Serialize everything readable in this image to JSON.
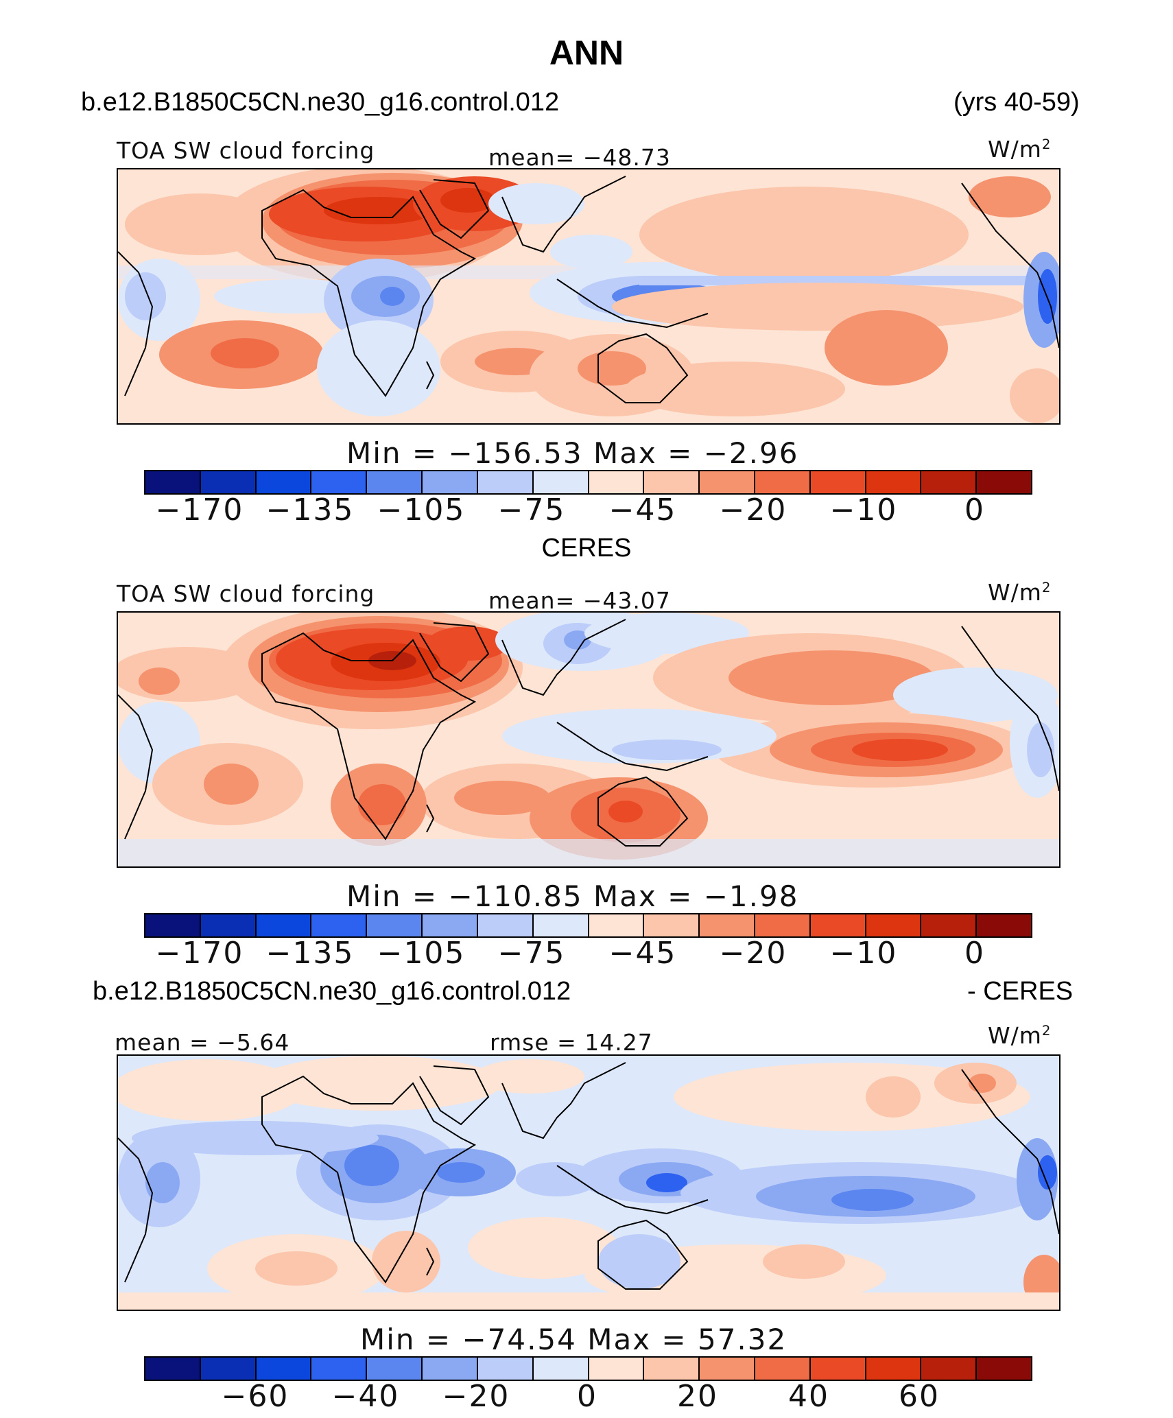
{
  "title": "ANN",
  "case_name": "b.e12.B1850C5CN.ne30_g16.control.012",
  "years": "(yrs 40-59)",
  "obs_name": "CERES",
  "diff_title_left": "b.e12.B1850C5CN.ne30_g16.control.012",
  "diff_title_right": "- CERES",
  "colors": {
    "palette": [
      "#08127a",
      "#0a2fb5",
      "#0b47dc",
      "#2d62f0",
      "#5b86f0",
      "#8ba9f3",
      "#bbcdf8",
      "#dde8fb",
      "#fde4d4",
      "#fbc6ab",
      "#f5936f",
      "#ef6c46",
      "#ea4a25",
      "#dc3510",
      "#b7210c",
      "#8a0a07"
    ],
    "ocean_base": "#fde4d4",
    "coastline": "#000000"
  },
  "panels": [
    {
      "variable": "TOA SW cloud forcing",
      "mean_label": "mean=",
      "mean_value": "−48.73",
      "units": "W/m",
      "units_exp": "2",
      "min_label": "Min",
      "min_value": "−156.53",
      "max_label": "Max",
      "max_value": "−2.96",
      "colorbar_ticks": [
        "−170",
        "−135",
        "−105",
        "−75",
        "−45",
        "−20",
        "−10",
        "0"
      ]
    },
    {
      "variable": "TOA SW cloud forcing",
      "mean_label": "mean=",
      "mean_value": "−43.07",
      "units": "W/m",
      "units_exp": "2",
      "min_label": "Min",
      "min_value": "−110.85",
      "max_label": "Max",
      "max_value": "−1.98",
      "colorbar_ticks": [
        "−170",
        "−135",
        "−105",
        "−75",
        "−45",
        "−20",
        "−10",
        "0"
      ]
    },
    {
      "mean_label": "mean =",
      "mean_value": "−5.64",
      "rmse_label": "rmse =",
      "rmse_value": "14.27",
      "units": "W/m",
      "units_exp": "2",
      "min_label": "Min",
      "min_value": "−74.54",
      "max_label": "Max",
      "max_value": "57.32",
      "colorbar_ticks": [
        "−60",
        "−40",
        "−20",
        "0",
        "20",
        "40",
        "60"
      ]
    }
  ],
  "chart_data": [
    {
      "type": "heatmap",
      "title": "b.e12.B1850C5CN.ne30_g16.control.012 (yrs 40-59)",
      "variable": "TOA SW cloud forcing",
      "units": "W/m2",
      "mean": -48.73,
      "min": -156.53,
      "max": -2.96,
      "colorbar_levels": [
        -170,
        -135,
        -105,
        -75,
        -45,
        -20,
        -10,
        0
      ],
      "field_sketch": [
        {
          "region": "Sahara / Arabia",
          "approx": -12
        },
        {
          "region": "Central Africa",
          "approx": -110
        },
        {
          "region": "Maritime Continent",
          "approx": -135
        },
        {
          "region": "North Pacific subtropics",
          "approx": -35
        },
        {
          "region": "South Pacific",
          "approx": -30
        },
        {
          "region": "Peru coast",
          "approx": -140
        }
      ]
    },
    {
      "type": "heatmap",
      "title": "CERES",
      "variable": "TOA SW cloud forcing",
      "units": "W/m2",
      "mean": -43.07,
      "min": -110.85,
      "max": -1.98,
      "colorbar_levels": [
        -170,
        -135,
        -105,
        -75,
        -45,
        -20,
        -10,
        0
      ],
      "field_sketch": [
        {
          "region": "Sahara / Arabia",
          "approx": -8
        },
        {
          "region": "Australia",
          "approx": -25
        },
        {
          "region": "South Pacific",
          "approx": -20
        },
        {
          "region": "North Pacific subtropics",
          "approx": -30
        },
        {
          "region": "East Asia",
          "approx": -95
        }
      ]
    },
    {
      "type": "heatmap",
      "title": "b.e12.B1850C5CN.ne30_g16.control.012 - CERES",
      "units": "W/m2",
      "mean": -5.64,
      "rmse": 14.27,
      "min": -74.54,
      "max": 57.32,
      "colorbar_levels": [
        -60,
        -40,
        -20,
        0,
        20,
        40,
        60
      ],
      "field_sketch": [
        {
          "region": "Central Africa",
          "approx": -40
        },
        {
          "region": "Central Pacific",
          "approx": -45
        },
        {
          "region": "Maritime Continent",
          "approx": -55
        },
        {
          "region": "North Pacific",
          "approx": 20
        },
        {
          "region": "Southern Africa",
          "approx": 20
        }
      ]
    }
  ]
}
